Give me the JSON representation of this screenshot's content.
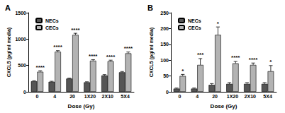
{
  "chart_data": [
    {
      "type": "bar",
      "title": "A",
      "x_label": "Dose (Gy)",
      "y_label": "CXCL5 (pg/ml media)",
      "categories": [
        "0",
        "4",
        "20",
        "1X20",
        "2X10",
        "5X4"
      ],
      "series": [
        {
          "name": "NECs",
          "color": "#555555",
          "values": [
            200,
            190,
            250,
            180,
            310,
            370
          ],
          "errors": [
            10,
            10,
            10,
            10,
            15,
            15
          ]
        },
        {
          "name": "CECs",
          "color": "#b3b3b3",
          "values": [
            380,
            760,
            1080,
            590,
            580,
            730
          ],
          "errors": [
            20,
            20,
            30,
            20,
            20,
            25
          ]
        }
      ],
      "annotations": [
        "****",
        "****",
        "****",
        "****",
        "****",
        "****"
      ],
      "ylim": [
        0,
        1500
      ],
      "yticks": [
        0,
        500,
        1000,
        1500
      ],
      "grid": false,
      "legend": "upper left"
    },
    {
      "type": "bar",
      "title": "B",
      "x_label": "Dose (Gy)",
      "y_label": "CXCL5 (pg/ml media)",
      "categories": [
        "0",
        "4",
        "20",
        "1X20",
        "2X10",
        "5X4"
      ],
      "series": [
        {
          "name": "NECs",
          "color": "#555555",
          "values": [
            10,
            10,
            22,
            25,
            25,
            25
          ],
          "errors": [
            2,
            2,
            4,
            4,
            4,
            4
          ]
        },
        {
          "name": "CECs",
          "color": "#b3b3b3",
          "values": [
            50,
            85,
            180,
            90,
            85,
            65
          ],
          "errors": [
            5,
            20,
            25,
            6,
            6,
            18
          ]
        }
      ],
      "annotations": [
        "*",
        "***",
        "*",
        "****",
        "****",
        "*"
      ],
      "ylim": [
        0,
        250
      ],
      "yticks": [
        0,
        50,
        100,
        150,
        200,
        250
      ],
      "grid": false,
      "legend": "upper left"
    }
  ]
}
